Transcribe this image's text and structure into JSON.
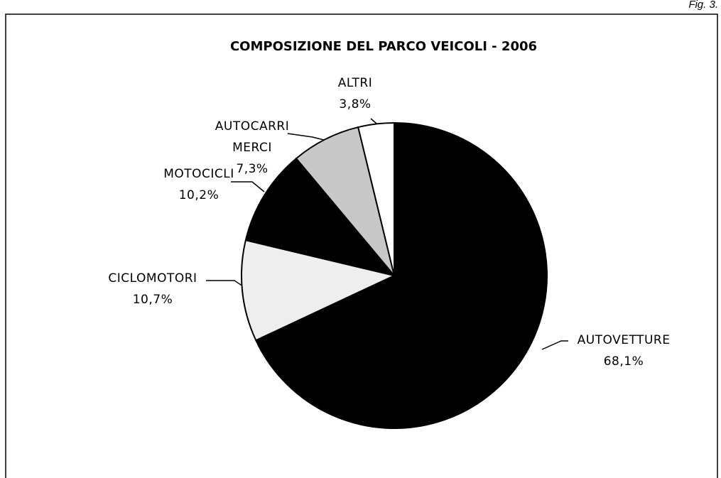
{
  "chart_data": {
    "type": "pie",
    "caption": "Fig. 3.",
    "title": "COMPOSIZIONE DEL PARCO VEICOLI - 2006",
    "categories": [
      "AUTOVETTURE",
      "CICLOMOTORI",
      "MOTOCICLI",
      "AUTOCARRI MERCI",
      "ALTRI"
    ],
    "values": [
      68.1,
      10.7,
      10.2,
      7.3,
      3.8
    ],
    "value_labels": [
      "68,1%",
      "10,7%",
      "10,2%",
      "7,3%",
      "3,8%"
    ],
    "colors": [
      "#000000",
      "#eeeeee",
      "#000000",
      "#c8c8c8",
      "#ffffff"
    ]
  }
}
